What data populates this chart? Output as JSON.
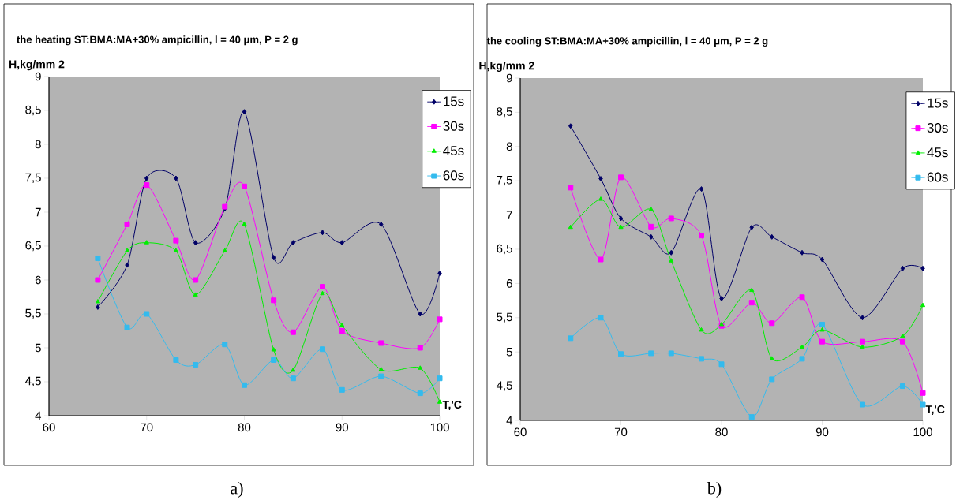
{
  "chart_data": [
    {
      "type": "line",
      "title": "the heating ST:BMA:MA+30% ampicillin, l = 40 μm, P = 2 g",
      "xlabel": "T,'C",
      "ylabel": "H,kg/mm 2",
      "x": [
        65,
        68,
        70,
        73,
        75,
        78,
        80,
        83,
        85,
        88,
        90,
        94,
        98,
        100
      ],
      "xlim": [
        60,
        100
      ],
      "xticks": [
        60,
        70,
        80,
        90,
        100
      ],
      "ylim": [
        4,
        9
      ],
      "yticks": [
        4,
        {
          "value": 4.5,
          "label": "4,5"
        },
        5,
        {
          "value": 5.5,
          "label": "5,5"
        },
        6,
        {
          "value": 6.5,
          "label": "6,5"
        },
        7,
        {
          "value": 7.5,
          "label": "7,5"
        },
        8,
        {
          "value": 8.5,
          "label": "8,5"
        },
        9
      ],
      "legend": "top right",
      "line_style": "solid",
      "annotations": [
        "a)"
      ],
      "series": [
        {
          "name": "15s",
          "color": "#000066",
          "marker": "diamond",
          "values": [
            5.6,
            6.22,
            7.5,
            7.5,
            6.55,
            7.05,
            8.48,
            6.33,
            6.55,
            6.7,
            6.55,
            6.82,
            5.5,
            6.1
          ]
        },
        {
          "name": "30s",
          "color": "#ff00ff",
          "marker": "square",
          "values": [
            6.0,
            6.82,
            7.4,
            6.58,
            6.0,
            7.08,
            7.38,
            5.7,
            5.23,
            5.9,
            5.25,
            5.07,
            5.0,
            5.42
          ]
        },
        {
          "name": "45s",
          "color": "#00ee00",
          "marker": "triangle",
          "values": [
            5.68,
            6.43,
            6.55,
            6.43,
            5.78,
            6.43,
            6.82,
            4.97,
            4.67,
            5.8,
            5.33,
            4.68,
            4.7,
            4.2
          ]
        },
        {
          "name": "60s",
          "color": "#33bbee",
          "marker": "square",
          "values": [
            6.32,
            5.3,
            5.5,
            4.82,
            4.75,
            5.05,
            4.45,
            4.82,
            4.55,
            4.98,
            4.38,
            4.58,
            4.33,
            4.55
          ]
        }
      ]
    },
    {
      "type": "line",
      "title": "the cooling ST:BMA:MA+30% ampicillin, l = 40 μm, P = 2 g",
      "xlabel": "T,'C",
      "ylabel": "H,kg/mm 2",
      "x": [
        65,
        68,
        70,
        73,
        75,
        78,
        80,
        83,
        85,
        88,
        90,
        94,
        98,
        100
      ],
      "xlim": [
        60,
        100
      ],
      "xticks": [
        60,
        70,
        80,
        90,
        100
      ],
      "ylim": [
        4,
        9
      ],
      "yticks": [
        4,
        {
          "value": 4.5,
          "label": "4,5"
        },
        5,
        {
          "value": 5.5,
          "label": "5,5"
        },
        6,
        {
          "value": 6.5,
          "label": "6,5"
        },
        7,
        {
          "value": 7.5,
          "label": "7,5"
        },
        8,
        {
          "value": 8.5,
          "label": "8,5"
        },
        9
      ],
      "legend": "top right",
      "line_style": "solid",
      "annotations": [
        "b)"
      ],
      "series": [
        {
          "name": "15s",
          "color": "#000066",
          "marker": "diamond",
          "values": [
            8.3,
            7.53,
            6.95,
            6.68,
            6.45,
            7.38,
            5.78,
            6.82,
            6.68,
            6.45,
            6.35,
            5.5,
            6.22,
            6.22
          ]
        },
        {
          "name": "30s",
          "color": "#ff00ff",
          "marker": "square",
          "values": [
            7.4,
            6.35,
            7.55,
            6.83,
            6.95,
            6.7,
            5.38,
            5.72,
            5.42,
            5.8,
            5.15,
            5.15,
            5.15,
            4.4
          ]
        },
        {
          "name": "45s",
          "color": "#00ee00",
          "marker": "triangle",
          "values": [
            6.82,
            7.23,
            6.82,
            7.08,
            6.33,
            5.32,
            5.4,
            5.9,
            4.9,
            5.07,
            5.32,
            5.07,
            5.23,
            5.68
          ]
        },
        {
          "name": "60s",
          "color": "#33bbee",
          "marker": "square",
          "values": [
            5.2,
            5.5,
            4.97,
            4.98,
            4.98,
            4.9,
            4.82,
            4.05,
            4.6,
            4.9,
            5.4,
            4.23,
            4.5,
            4.23
          ]
        }
      ]
    }
  ]
}
